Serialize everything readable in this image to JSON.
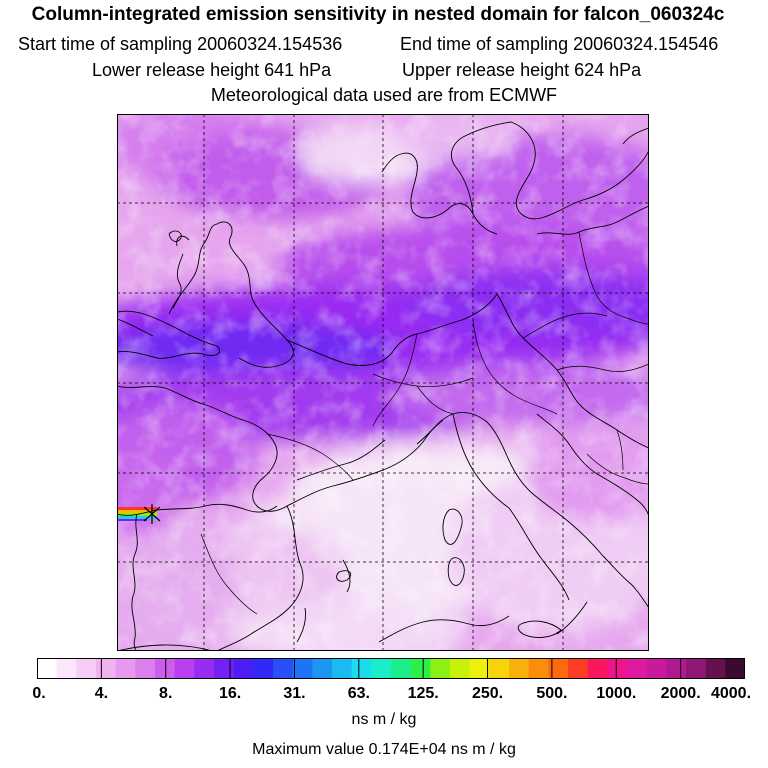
{
  "header": {
    "title": "Column-integrated emission sensitivity in nested domain for falcon_060324c",
    "start_label": "Start time of sampling 20060324.154536",
    "end_label": "End time of sampling 20060324.154546",
    "lower_label": "Lower release height  641 hPa",
    "upper_label": "Upper release height  624 hPa",
    "met_label": "Meteorological data used are from ECMWF"
  },
  "legend": {
    "ticks": [
      "0.",
      "4.",
      "8.",
      "16.",
      "31.",
      "63.",
      "125.",
      "250.",
      "500.",
      "1000.",
      "2000.",
      "4000."
    ],
    "units": "ns m / kg",
    "max_value": "Maximum value  0.174E+04 ns m / kg",
    "colors": [
      "#ffffff",
      "#fbe6fb",
      "#f6cdf6",
      "#f0b3f0",
      "#e699ee",
      "#dc7fec",
      "#cd5ded",
      "#b93ff0",
      "#9a2cf2",
      "#7322f3",
      "#4e1cf5",
      "#3029f7",
      "#2a4ff7",
      "#1f73f5",
      "#1d96f3",
      "#1bbaf0",
      "#19dcee",
      "#1aeec9",
      "#1cee8e",
      "#2bf04a",
      "#8cf014",
      "#c8f10a",
      "#eef009",
      "#f7d30a",
      "#f9b00b",
      "#fa8d0c",
      "#fb6a0f",
      "#fb3f25",
      "#fa175e",
      "#f0148c",
      "#de1aa0",
      "#c91a9e",
      "#b0198f",
      "#911776",
      "#66104f",
      "#3a0a30"
    ]
  }
}
